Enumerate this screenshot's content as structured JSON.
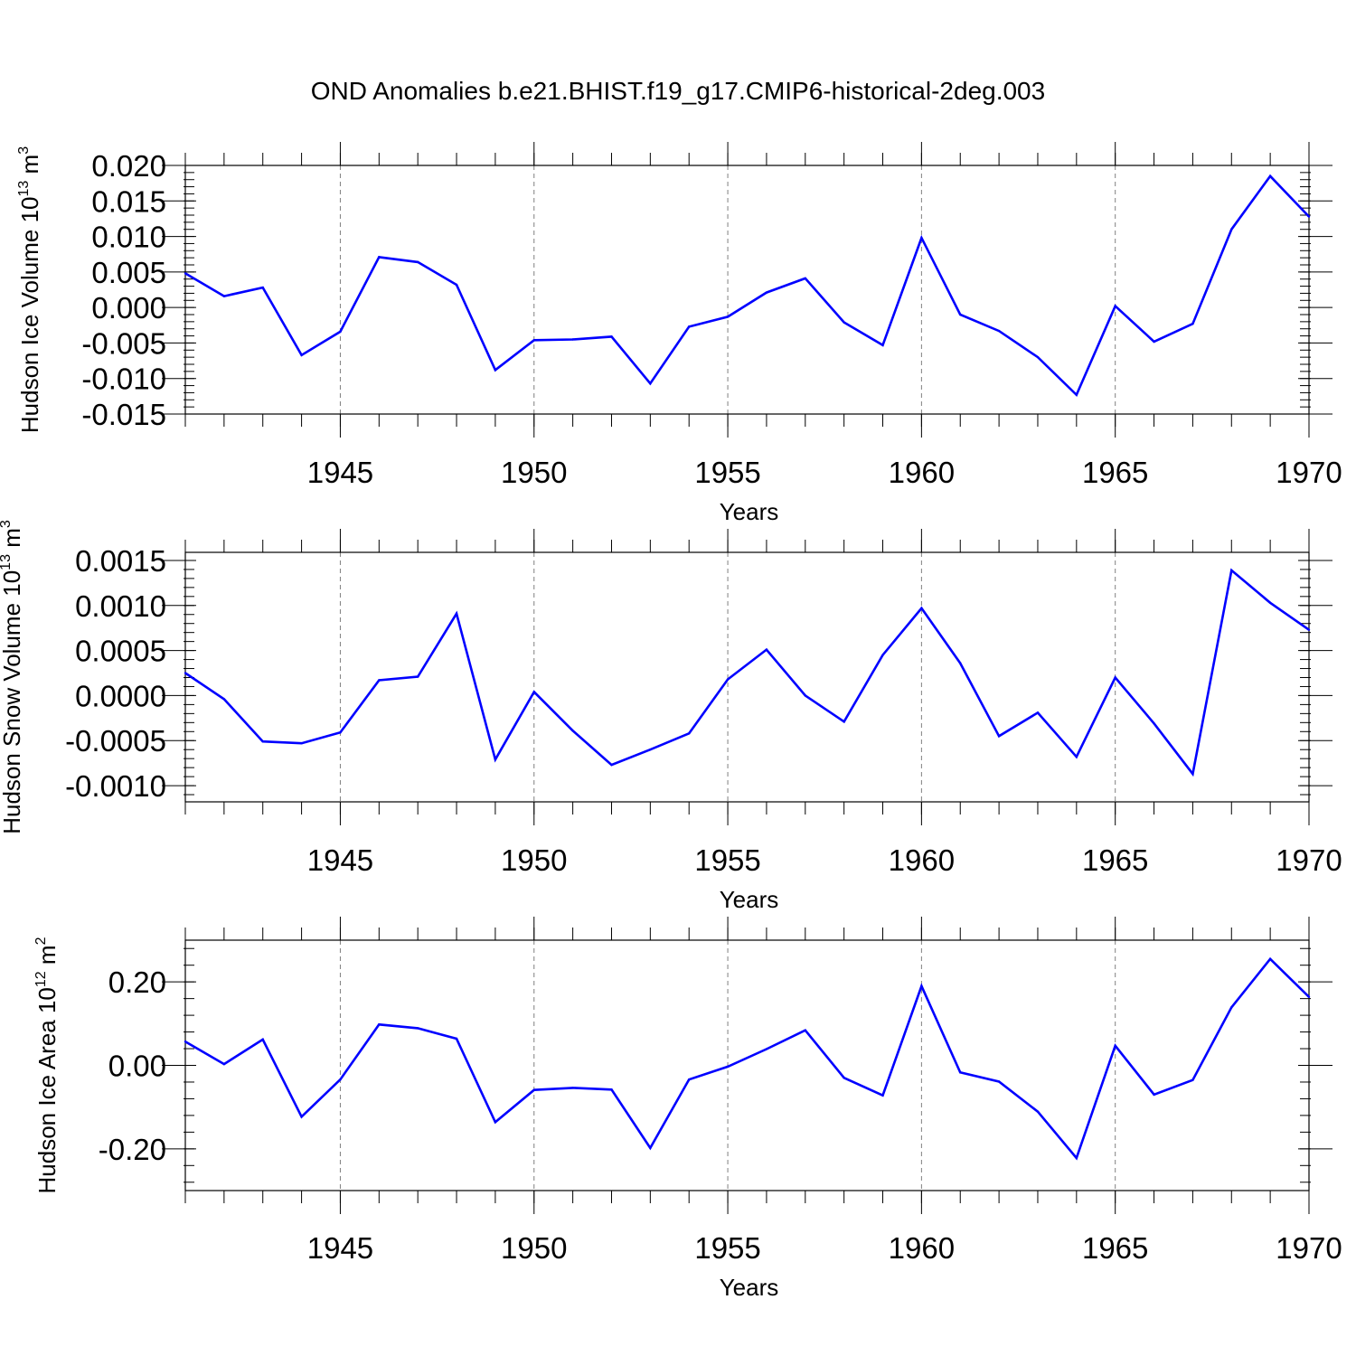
{
  "title": "OND Anomalies b.e21.BHIST.f19_g17.CMIP6-historical-2deg.003",
  "colors": {
    "series": "#0000ff",
    "axis": "#000000",
    "grid": "#808080"
  },
  "chart_data": [
    {
      "type": "line",
      "name": "ice-volume",
      "ylabel_main": "Hudson Ice Volume 10",
      "ylabel_exp": "13",
      "ylabel_unit": " m",
      "ylabel_unit_exp": "3",
      "xlabel": "Years",
      "xlim": [
        1941,
        1970
      ],
      "ylim": [
        -0.015,
        0.02
      ],
      "y_ticks": [
        -0.015,
        -0.01,
        -0.005,
        0.0,
        0.005,
        0.01,
        0.015,
        0.02
      ],
      "y_tick_labels": [
        "-0.015",
        "-0.010",
        "-0.005",
        "0.000",
        "0.005",
        "0.010",
        "0.015",
        "0.020"
      ],
      "y_minor_step": 0.001,
      "x_ticks": [
        1945,
        1950,
        1955,
        1960,
        1965,
        1970
      ],
      "x_tick_labels": [
        "1945",
        "1950",
        "1955",
        "1960",
        "1965",
        "1970"
      ],
      "gridlines_x": [
        1945,
        1950,
        1955,
        1960,
        1965
      ],
      "x": [
        1941,
        1942,
        1943,
        1944,
        1945,
        1946,
        1947,
        1948,
        1949,
        1950,
        1951,
        1952,
        1953,
        1954,
        1955,
        1956,
        1957,
        1958,
        1959,
        1960,
        1961,
        1962,
        1963,
        1964,
        1965,
        1966,
        1967,
        1968,
        1969,
        1970
      ],
      "values": [
        0.0048,
        0.0016,
        0.0028,
        -0.0067,
        -0.0034,
        0.0071,
        0.0064,
        0.0032,
        -0.0088,
        -0.0046,
        -0.0045,
        -0.0041,
        -0.0107,
        -0.0027,
        -0.0013,
        0.0021,
        0.0041,
        -0.0021,
        -0.0053,
        0.0098,
        -0.001,
        -0.0033,
        -0.007,
        -0.0123,
        0.0002,
        -0.0048,
        -0.0023,
        0.011,
        0.0185,
        0.0128
      ]
    },
    {
      "type": "line",
      "name": "snow-volume",
      "ylabel_main": "Hudson Snow Volume 10",
      "ylabel_exp": "13",
      "ylabel_unit": " m",
      "ylabel_unit_exp": "3",
      "xlabel": "Years",
      "xlim": [
        1941,
        1970
      ],
      "ylim": [
        -0.00118,
        0.00159
      ],
      "y_ticks": [
        -0.001,
        -0.0005,
        0.0,
        0.0005,
        0.001,
        0.0015
      ],
      "y_tick_labels": [
        "-0.0010",
        "-0.0005",
        "0.0000",
        "0.0005",
        "0.0010",
        "0.0015"
      ],
      "y_minor_step": 0.0001,
      "x_ticks": [
        1945,
        1950,
        1955,
        1960,
        1965,
        1970
      ],
      "x_tick_labels": [
        "1945",
        "1950",
        "1955",
        "1960",
        "1965",
        "1970"
      ],
      "gridlines_x": [
        1945,
        1950,
        1955,
        1960,
        1965
      ],
      "x": [
        1941,
        1942,
        1943,
        1944,
        1945,
        1946,
        1947,
        1948,
        1949,
        1950,
        1951,
        1952,
        1953,
        1954,
        1955,
        1956,
        1957,
        1958,
        1959,
        1960,
        1961,
        1962,
        1963,
        1964,
        1965,
        1966,
        1967,
        1968,
        1969,
        1970
      ],
      "values": [
        0.00025,
        -4e-05,
        -0.00051,
        -0.00053,
        -0.00041,
        0.00017,
        0.00021,
        0.00091,
        -0.00071,
        4e-05,
        -0.00039,
        -0.00077,
        -0.0006,
        -0.00042,
        0.00018,
        0.00051,
        0.0,
        -0.00029,
        0.00045,
        0.00097,
        0.00036,
        -0.00045,
        -0.00019,
        -0.00068,
        0.0002,
        -0.00031,
        -0.00087,
        0.00139,
        0.00103,
        0.00073
      ]
    },
    {
      "type": "line",
      "name": "ice-area",
      "ylabel_main": "Hudson Ice Area 10",
      "ylabel_exp": "12",
      "ylabel_unit": " m",
      "ylabel_unit_exp": "2",
      "xlabel": "Years",
      "xlim": [
        1941,
        1970
      ],
      "ylim": [
        -0.3,
        0.3
      ],
      "y_ticks": [
        -0.2,
        0.0,
        0.2
      ],
      "y_tick_labels": [
        "-0.20",
        "0.00",
        "0.20"
      ],
      "y_minor_step": 0.04,
      "x_ticks": [
        1945,
        1950,
        1955,
        1960,
        1965,
        1970
      ],
      "x_tick_labels": [
        "1945",
        "1950",
        "1955",
        "1960",
        "1965",
        "1970"
      ],
      "gridlines_x": [
        1945,
        1950,
        1955,
        1960,
        1965
      ],
      "x": [
        1941,
        1942,
        1943,
        1944,
        1945,
        1946,
        1947,
        1948,
        1949,
        1950,
        1951,
        1952,
        1953,
        1954,
        1955,
        1956,
        1957,
        1958,
        1959,
        1960,
        1961,
        1962,
        1963,
        1964,
        1965,
        1966,
        1967,
        1968,
        1969,
        1970
      ],
      "values": [
        0.057,
        0.003,
        0.062,
        -0.123,
        -0.034,
        0.098,
        0.089,
        0.064,
        -0.136,
        -0.059,
        -0.054,
        -0.058,
        -0.198,
        -0.034,
        -0.003,
        0.039,
        0.084,
        -0.03,
        -0.072,
        0.19,
        -0.017,
        -0.039,
        -0.111,
        -0.222,
        0.047,
        -0.07,
        -0.035,
        0.139,
        0.255,
        0.164
      ]
    }
  ]
}
